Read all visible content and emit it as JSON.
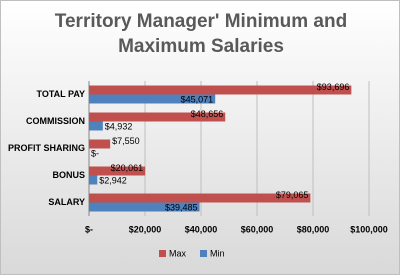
{
  "chart_data": {
    "type": "bar",
    "orientation": "horizontal",
    "title": "Territory Manager' Minimum and Maximum Salaries",
    "categories": [
      "TOTAL PAY",
      "COMMISSION",
      "PROFIT SHARING",
      "BONUS",
      "SALARY"
    ],
    "series": [
      {
        "name": "Max",
        "color": "#c0504d",
        "values": [
          93696,
          48656,
          7550,
          20061,
          79065
        ],
        "value_labels": [
          "$93,696",
          "$48,656",
          "$7,550",
          "$20,061",
          "$79,065"
        ]
      },
      {
        "name": "Min",
        "color": "#4f81bd",
        "values": [
          45071,
          4932,
          0,
          2942,
          39485
        ],
        "value_labels": [
          "$45,071",
          "$4,932",
          "$-",
          "$2,942",
          "$39,485"
        ]
      }
    ],
    "xlim": [
      0,
      100000
    ],
    "xticks": [
      {
        "value": 0,
        "label": "$-"
      },
      {
        "value": 20000,
        "label": "$20,000"
      },
      {
        "value": 40000,
        "label": "$40,000"
      },
      {
        "value": 60000,
        "label": "$60,000"
      },
      {
        "value": 80000,
        "label": "$80,000"
      },
      {
        "value": 100000,
        "label": "$100,000"
      }
    ],
    "grid": true,
    "legend": "bottom"
  }
}
